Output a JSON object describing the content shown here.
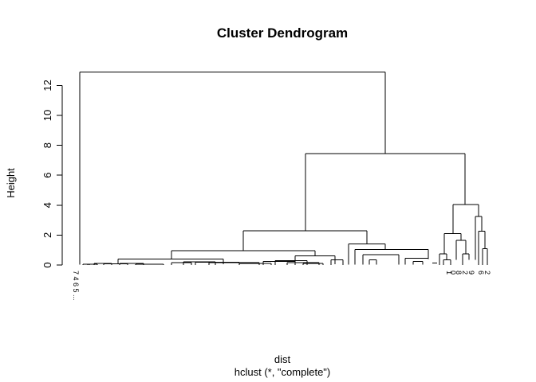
{
  "chart_data": {
    "type": "dendrogram",
    "title": "Cluster Dendrogram",
    "ylabel": "Height",
    "xlabel": "dist",
    "sub": "hclust (*, \"complete\")",
    "ylim": [
      0,
      13
    ],
    "yticks": [
      0,
      2,
      4,
      6,
      8,
      10,
      12
    ],
    "root_height": 12.9,
    "merges": {
      "root": {
        "height": 12.9,
        "children": [
          "A",
          "B"
        ]
      },
      "B": {
        "height": 7.45,
        "children": [
          "B1",
          "B2"
        ]
      },
      "B1": {
        "height": 2.3,
        "children": [
          "B1a",
          "B1b"
        ]
      },
      "B2": {
        "height": 4.05,
        "children": [
          "B2a",
          "B2b"
        ]
      },
      "B1a": {
        "height": 0.95,
        "children": [
          "B1a1",
          "B1a2"
        ]
      },
      "B1b": {
        "height": 1.4,
        "children": [
          "B1b1",
          "B1b2"
        ]
      },
      "B2a": {
        "height": 2.1,
        "children": [
          "B2a1",
          "B2a2"
        ]
      },
      "B2b": {
        "height": 3.25,
        "children": [
          "B2b1",
          "B2b2"
        ]
      },
      "B2b2": {
        "height": 2.25,
        "children": [
          "B2b2a",
          "B2b2b"
        ]
      },
      "B2b2b": {
        "height": 1.1,
        "children": [
          "B2b2b1",
          "B2b2b2"
        ]
      },
      "B2a2": {
        "height": 1.65,
        "children": [
          "B2a2a",
          "B2a2b"
        ]
      },
      "B2a2b": {
        "height": 0.75,
        "children": [
          "B2a2b1",
          "B2a2b2"
        ]
      },
      "B2a1": {
        "height": 0.75,
        "children": [
          "B2a1a",
          "B2a1b"
        ]
      },
      "B2a1a": {
        "height": 0.35,
        "children": [
          "L1",
          "L2"
        ]
      },
      "A": {
        "height": 0.4,
        "children": [
          "A1",
          "A2"
        ]
      },
      "A2": {
        "height": 0.1,
        "children": [
          "A2a",
          "A2b"
        ]
      },
      "A1": {
        "height": 0.2,
        "children": [
          "A1a",
          "A1b"
        ]
      },
      "B1a1": {
        "height": 0.6,
        "children": [
          "B1a1a",
          "B1a1b"
        ]
      },
      "B1a2": {
        "height": 0.3,
        "children": [
          "B1a2a",
          "B1a2b"
        ]
      },
      "B1b1": {
        "height": 1.05,
        "children": [
          "B1b1a",
          "B1b1b"
        ]
      },
      "B1b2": {
        "height": 0.8,
        "children": [
          "B1b2a",
          "B1b2b"
        ]
      },
      "B1b1a": {
        "height": 0.7,
        "children": [
          "B1b1a1",
          "B1b1a2"
        ]
      },
      "B1b2a": {
        "height": 0.45,
        "children": [
          "B1b2a1",
          "B1b2a2"
        ]
      }
    },
    "leaf_labels": {
      "left_cluster": "7 4 6 5 ...",
      "visible_right": [
        "1",
        "0",
        "8",
        "2",
        "9",
        "6",
        "2"
      ]
    }
  }
}
